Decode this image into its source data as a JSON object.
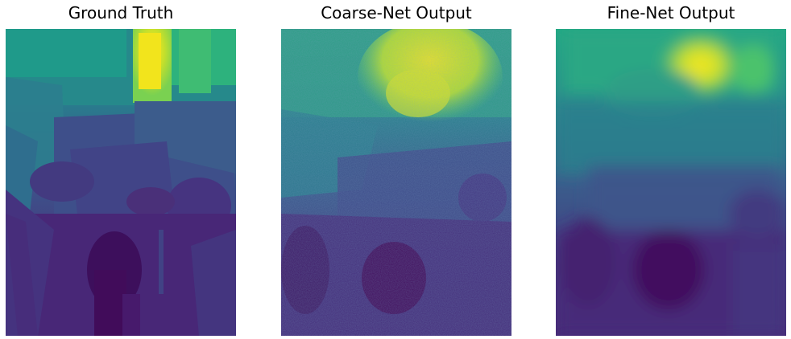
{
  "figure": {
    "panels": [
      {
        "id": "gt",
        "title": "Ground Truth"
      },
      {
        "id": "coarse",
        "title": "Coarse-Net Output"
      },
      {
        "id": "fine",
        "title": "Fine-Net Output"
      }
    ],
    "colormap": "viridis",
    "palette": {
      "deep_purple": "#440154",
      "indigo": "#3b3a80",
      "blue_violet": "#414487",
      "slate_blue": "#3e5b8c",
      "teal_blue": "#2a788e",
      "teal": "#21918c",
      "green": "#35b779",
      "lime": "#8fd744",
      "yellow": "#fde725"
    }
  }
}
